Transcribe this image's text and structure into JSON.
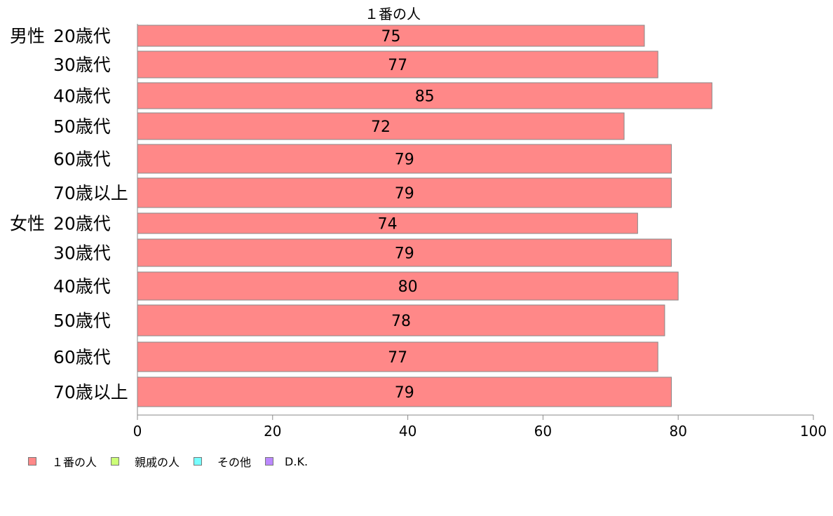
{
  "chart_data": {
    "type": "bar",
    "orientation": "horizontal",
    "title": "１番の人",
    "groups": [
      {
        "name": "男性",
        "row_start": 0
      },
      {
        "name": "女性",
        "row_start": 6
      }
    ],
    "categories": [
      "20歳代",
      "30歳代",
      "40歳代",
      "50歳代",
      "60歳代",
      "70歳以上",
      "20歳代",
      "30歳代",
      "40歳代",
      "50歳代",
      "60歳代",
      "70歳以上"
    ],
    "series": [
      {
        "name": "１番の人",
        "color": "#ff8888",
        "values": [
          75,
          77,
          85,
          72,
          79,
          79,
          74,
          79,
          80,
          78,
          77,
          79
        ]
      }
    ],
    "data_labels": [
      "75",
      "77",
      "85",
      "72",
      "79",
      "79",
      "74",
      "79",
      "80",
      "78",
      "77",
      "79"
    ],
    "xlim": [
      0,
      100
    ],
    "xticks": [
      "0",
      "20",
      "40",
      "60",
      "80",
      "100"
    ],
    "xlabel": "",
    "ylabel": "",
    "grid": false,
    "legend_position": "bottom-left",
    "legend": [
      {
        "label": "１番の人",
        "color": "#ff8888"
      },
      {
        "label": "親戚の人",
        "color": "#ccff77"
      },
      {
        "label": "その他",
        "color": "#77ffff"
      },
      {
        "label": "D.K.",
        "color": "#bb88ff"
      }
    ]
  }
}
